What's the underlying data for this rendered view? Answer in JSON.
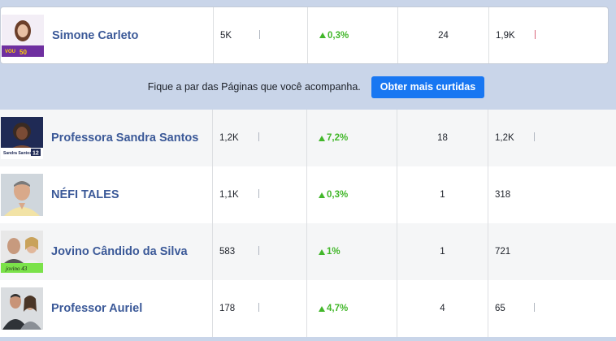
{
  "banner": {
    "text": "Fique a par das Páginas que você acompanha.",
    "button_label": "Obter mais curtidas"
  },
  "pages": [
    {
      "name": "Simone Carleto",
      "likes": "5K",
      "growth": "0,3%",
      "posts": "24",
      "engagement": "1,9K",
      "engagement_spark": "red",
      "avatar_text": "VOU GENTE 50"
    },
    {
      "name": "Professora Sandra Santos",
      "likes": "1,2K",
      "growth": "7,2%",
      "posts": "18",
      "engagement": "1,2K",
      "engagement_spark": "gray",
      "avatar_text": "Sandra Santos 12"
    },
    {
      "name": "NÉFI TALES",
      "likes": "1,1K",
      "growth": "0,3%",
      "posts": "1",
      "engagement": "318",
      "engagement_spark": "none",
      "avatar_text": ""
    },
    {
      "name": "Jovino Cândido da Silva",
      "likes": "583",
      "growth": "1%",
      "posts": "1",
      "engagement": "721",
      "engagement_spark": "none",
      "avatar_text": "jovino 43"
    },
    {
      "name": "Professor Auriel",
      "likes": "178",
      "growth": "4,7%",
      "posts": "4",
      "engagement": "65",
      "engagement_spark": "gray",
      "avatar_text": ""
    }
  ],
  "colors": {
    "name_link": "#3b5998",
    "growth_up": "#42b72a",
    "button": "#1877f2",
    "background": "#c9d5e9"
  }
}
